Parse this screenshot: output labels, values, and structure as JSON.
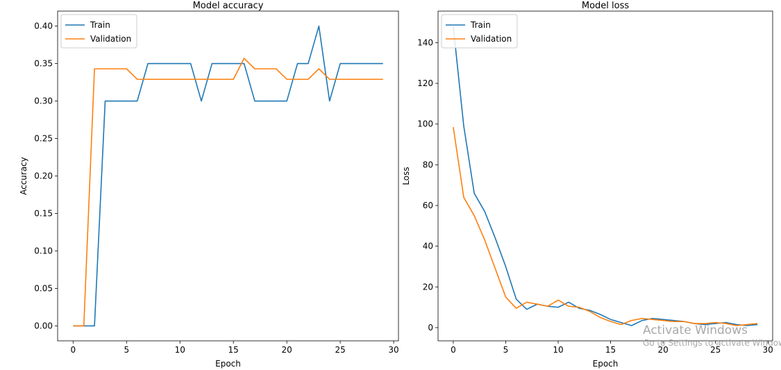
{
  "chart_data": [
    {
      "type": "line",
      "title": "Model accuracy",
      "xlabel": "Epoch",
      "ylabel": "Accuracy",
      "xlim": [
        -1.45,
        30.45
      ],
      "ylim": [
        -0.02,
        0.42
      ],
      "xticks": [
        0,
        5,
        10,
        15,
        20,
        25,
        30
      ],
      "yticks": [
        "0.00",
        "0.05",
        "0.10",
        "0.15",
        "0.20",
        "0.25",
        "0.30",
        "0.35",
        "0.40"
      ],
      "legend_position": "top-left",
      "x": [
        0,
        1,
        2,
        3,
        4,
        5,
        6,
        7,
        8,
        9,
        10,
        11,
        12,
        13,
        14,
        15,
        16,
        17,
        18,
        19,
        20,
        21,
        22,
        23,
        24,
        25,
        26,
        27,
        28,
        29
      ],
      "series": [
        {
          "name": "Train",
          "color": "#1f77b4",
          "values": [
            0,
            0,
            0,
            0.3,
            0.3,
            0.3,
            0.3,
            0.35,
            0.35,
            0.35,
            0.35,
            0.35,
            0.3,
            0.35,
            0.35,
            0.35,
            0.35,
            0.3,
            0.3,
            0.3,
            0.3,
            0.35,
            0.35,
            0.4,
            0.3,
            0.35,
            0.35,
            0.35,
            0.35,
            0.35
          ]
        },
        {
          "name": "Validation",
          "color": "#ff7f0e",
          "values": [
            0,
            0,
            0.343,
            0.343,
            0.343,
            0.343,
            0.329,
            0.329,
            0.329,
            0.329,
            0.329,
            0.329,
            0.329,
            0.329,
            0.329,
            0.329,
            0.357,
            0.343,
            0.343,
            0.343,
            0.329,
            0.329,
            0.329,
            0.343,
            0.329,
            0.329,
            0.329,
            0.329,
            0.329,
            0.329
          ]
        }
      ]
    },
    {
      "type": "line",
      "title": "Model loss",
      "xlabel": "Epoch",
      "ylabel": "Loss",
      "xlim": [
        -1.45,
        30.45
      ],
      "ylim": [
        -6.5,
        155.5
      ],
      "xticks": [
        0,
        5,
        10,
        15,
        20,
        25,
        30
      ],
      "yticks": [
        0,
        20,
        40,
        60,
        80,
        100,
        120,
        140
      ],
      "legend_position": "top-left",
      "x": [
        0,
        1,
        2,
        3,
        4,
        5,
        6,
        7,
        8,
        9,
        10,
        11,
        12,
        13,
        14,
        15,
        16,
        17,
        18,
        19,
        20,
        21,
        22,
        23,
        24,
        25,
        26,
        27,
        28,
        29
      ],
      "series": [
        {
          "name": "Train",
          "color": "#1f77b4",
          "values": [
            148,
            99,
            66,
            57,
            44,
            30,
            14,
            9,
            11.5,
            10.5,
            10,
            12.5,
            9.5,
            8.5,
            6.5,
            4,
            2.5,
            1,
            3.5,
            4.5,
            4,
            3.5,
            3,
            2,
            1.5,
            2,
            2.5,
            1.5,
            1,
            1.5
          ]
        },
        {
          "name": "Validation",
          "color": "#ff7f0e",
          "values": [
            98.5,
            64,
            55,
            43,
            29,
            15,
            9.5,
            12.5,
            11.5,
            10.5,
            13.5,
            10.5,
            10,
            8,
            5,
            3,
            1.5,
            3.5,
            4.5,
            4,
            3.5,
            3,
            3,
            2,
            2,
            2.5,
            2,
            1,
            1.5,
            2
          ]
        }
      ]
    }
  ],
  "watermark": {
    "line1": "Activate Windows",
    "line2": "Go to Settings to activate Windows."
  }
}
